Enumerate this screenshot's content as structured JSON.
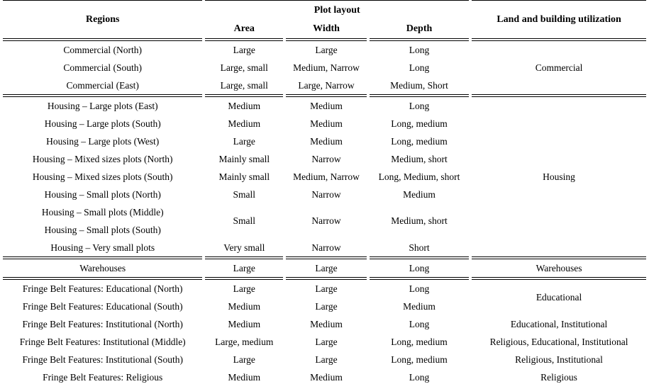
{
  "header": {
    "regions": "Regions",
    "plot_layout": "Plot layout",
    "area": "Area",
    "width": "Width",
    "depth": "Depth",
    "utilization": "Land and building utilization"
  },
  "sections": [
    {
      "name": "Commercial",
      "utilization": "Commercial",
      "rows": [
        {
          "region": "Commercial (North)",
          "area": "Large",
          "width": "Large",
          "depth": "Long"
        },
        {
          "region": "Commercial (South)",
          "area": "Large, small",
          "width": "Medium, Narrow",
          "depth": "Long"
        },
        {
          "region": "Commercial (East)",
          "area": "Large, small",
          "width": "Large, Narrow",
          "depth": "Medium, Short"
        }
      ]
    },
    {
      "name": "Housing",
      "utilization": "Housing",
      "rows": [
        {
          "region": "Housing – Large plots (East)",
          "area": "Medium",
          "width": "Medium",
          "depth": "Long"
        },
        {
          "region": "Housing – Large plots (South)",
          "area": "Medium",
          "width": "Medium",
          "depth": "Long, medium"
        },
        {
          "region": "Housing – Large plots (West)",
          "area": "Large",
          "width": "Medium",
          "depth": "Long, medium"
        },
        {
          "region": "Housing – Mixed sizes plots (North)",
          "area": "Mainly small",
          "width": "Narrow",
          "depth": "Medium, short"
        },
        {
          "region": "Housing – Mixed sizes plots (South)",
          "area": "Mainly small",
          "width": "Medium, Narrow",
          "depth": "Long, Medium, short"
        },
        {
          "region": "Housing – Small plots (North)",
          "area": "Small",
          "width": "Narrow",
          "depth": "Medium"
        },
        {
          "region": "Housing – Small plots (Middle)",
          "area": "Small",
          "width": "Narrow",
          "depth": "Medium, short",
          "merged_with_next_row": true
        },
        {
          "region": "Housing – Small plots (South)"
        },
        {
          "region": "Housing – Very small plots",
          "area": "Very small",
          "width": "Narrow",
          "depth": "Short"
        }
      ]
    },
    {
      "name": "Warehouses",
      "utilization": "Warehouses",
      "rows": [
        {
          "region": "Warehouses",
          "area": "Large",
          "width": "Large",
          "depth": "Long"
        }
      ]
    },
    {
      "name": "Fringe Belt Features",
      "rows": [
        {
          "region": "Fringe Belt Features: Educational (North)",
          "area": "Large",
          "width": "Large",
          "depth": "Long",
          "utilization": "Educational",
          "utilization_spans_next_row": true
        },
        {
          "region": "Fringe Belt Features: Educational (South)",
          "area": "Medium",
          "width": "Large",
          "depth": "Medium"
        },
        {
          "region": "Fringe Belt Features: Institutional (North)",
          "area": "Medium",
          "width": "Medium",
          "depth": "Long",
          "utilization": "Educational, Institutional"
        },
        {
          "region": "Fringe Belt Features: Institutional (Middle)",
          "area": "Large, medium",
          "width": "Large",
          "depth": "Long, medium",
          "utilization": "Religious, Educational, Institutional"
        },
        {
          "region": "Fringe Belt Features: Institutional (South)",
          "area": "Large",
          "width": "Large",
          "depth": "Long, medium",
          "utilization": "Religious, Institutional"
        },
        {
          "region": "Fringe Belt Features: Religious",
          "area": "Medium",
          "width": "Medium",
          "depth": "Long",
          "utilization": "Religious"
        }
      ]
    }
  ],
  "colors": {
    "text": "#000000",
    "background": "#ffffff",
    "rule": "#000000"
  }
}
